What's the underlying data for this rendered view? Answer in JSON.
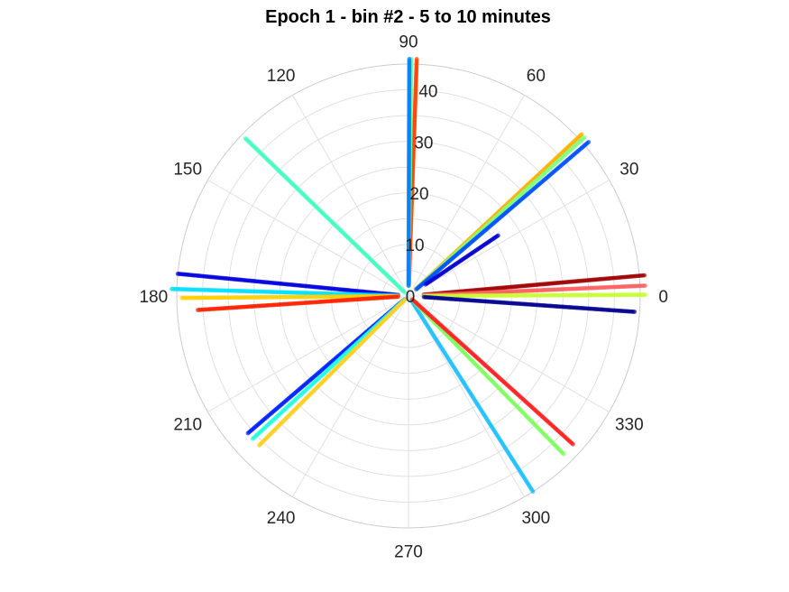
{
  "chart_data": {
    "type": "scatter",
    "subtype": "polar",
    "title": "Epoch 1 - bin #2 - 5 to 10 minutes",
    "theta_ticks": [
      "0",
      "30",
      "60",
      "90",
      "120",
      "150",
      "180",
      "210",
      "240",
      "270",
      "300",
      "330"
    ],
    "r_ticks": [
      "0",
      "10",
      "20",
      "30",
      "40"
    ],
    "rlim": [
      0,
      45
    ],
    "grid": true,
    "colormap": "jet",
    "series": [
      {
        "theta_deg": 88,
        "r_range": [
          2,
          46
        ],
        "color": "#ff4000"
      },
      {
        "theta_deg": 89.3,
        "r_range": [
          2,
          46
        ],
        "color": "#60ffa0"
      },
      {
        "theta_deg": 89.8,
        "r_range": [
          2,
          46
        ],
        "color": "#0080ff"
      },
      {
        "theta_deg": 43,
        "r_range": [
          2,
          46
        ],
        "color": "#ffb000"
      },
      {
        "theta_deg": 42,
        "r_range": [
          2,
          46
        ],
        "color": "#80ff80"
      },
      {
        "theta_deg": 40.5,
        "r_range": [
          2,
          46
        ],
        "color": "#0050ff"
      },
      {
        "theta_deg": 34,
        "r_range": [
          4,
          21
        ],
        "color": "#0000cc"
      },
      {
        "theta_deg": 5,
        "r_range": [
          3,
          46
        ],
        "color": "#a00000"
      },
      {
        "theta_deg": 2.5,
        "r_range": [
          3,
          46
        ],
        "color": "#ff6060"
      },
      {
        "theta_deg": 0.3,
        "r_range": [
          3,
          46
        ],
        "color": "#c8ff30"
      },
      {
        "theta_deg": -4,
        "r_range": [
          3,
          44
        ],
        "color": "#000090"
      },
      {
        "theta_deg": 136,
        "r_range": [
          1,
          44
        ],
        "color": "#40ffc0"
      },
      {
        "theta_deg": 174.5,
        "r_range": [
          2,
          45
        ],
        "color": "#0000dd"
      },
      {
        "theta_deg": 178.3,
        "r_range": [
          2,
          46
        ],
        "color": "#00e0ff"
      },
      {
        "theta_deg": 180.5,
        "r_range": [
          2,
          44
        ],
        "color": "#ffd000"
      },
      {
        "theta_deg": 183.8,
        "r_range": [
          2,
          41
        ],
        "color": "#ff2000"
      },
      {
        "theta_deg": 220.5,
        "r_range": [
          1,
          41
        ],
        "color": "#0020ff"
      },
      {
        "theta_deg": 222.5,
        "r_range": [
          1,
          41
        ],
        "color": "#20ffe0"
      },
      {
        "theta_deg": 225,
        "r_range": [
          1,
          41
        ],
        "color": "#ffd020"
      },
      {
        "theta_deg": 302.5,
        "r_range": [
          1,
          45
        ],
        "color": "#20c0ff"
      },
      {
        "theta_deg": 314.5,
        "r_range": [
          1,
          43
        ],
        "color": "#80ff60"
      },
      {
        "theta_deg": 318,
        "r_range": [
          1,
          43
        ],
        "color": "#ff2020"
      }
    ]
  }
}
